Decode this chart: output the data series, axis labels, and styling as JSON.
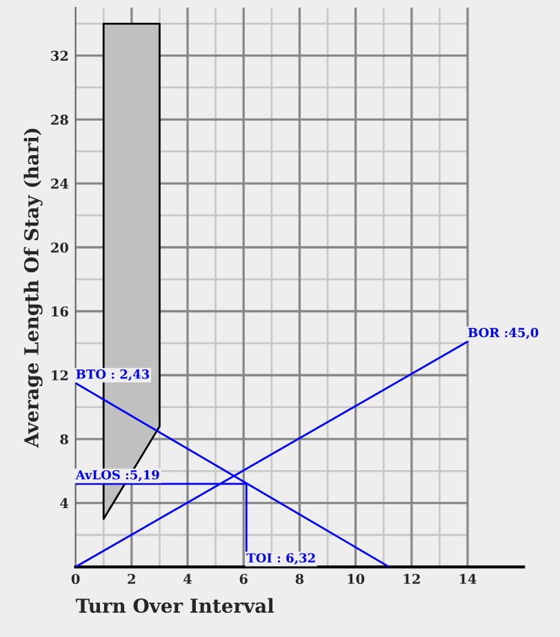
{
  "chart_data": {
    "type": "line",
    "xlabel": "Turn Over Interval",
    "ylabel": "Average Length Of Stay (hari)",
    "series": [
      {
        "x": [
          1,
          3
        ],
        "values": [
          3,
          8.8
        ],
        "lower": [
          3,
          8.8
        ],
        "upper": [
          34,
          34
        ],
        "color": "#c0c0c0"
      },
      {
        "x": [
          0,
          11.2
        ],
        "values": [
          11.5,
          0
        ],
        "color": "#0000ff"
      },
      {
        "x": [
          0,
          14
        ],
        "values": [
          0,
          14.1
        ],
        "color": "#0000ff"
      },
      {
        "x": [
          0,
          6.1
        ],
        "values": [
          5.2,
          5.2
        ],
        "color": "#0000ff"
      },
      {
        "x": [
          6.1,
          6.1
        ],
        "values": [
          5.2,
          0
        ],
        "color": "#0000ff"
      }
    ],
    "annotations": [
      {
        "text": "BTO : 2,43",
        "x": 0,
        "y": 11.5
      },
      {
        "text": "BOR :45,0",
        "x": 14,
        "y": 14.1
      },
      {
        "text": "AvLOS :5,19",
        "x": 0,
        "y": 5.2
      },
      {
        "text": "TOI : 6,32",
        "x": 6.1,
        "y": 0
      }
    ],
    "xlim": [
      0,
      16
    ],
    "ylim": [
      0,
      35
    ],
    "xticks": [
      0,
      2,
      4,
      6,
      8,
      10,
      12,
      14
    ],
    "yticks": [
      4,
      8,
      12,
      16,
      20,
      24,
      28,
      32
    ],
    "grid": true,
    "marker": "none",
    "line_style": "solid"
  }
}
